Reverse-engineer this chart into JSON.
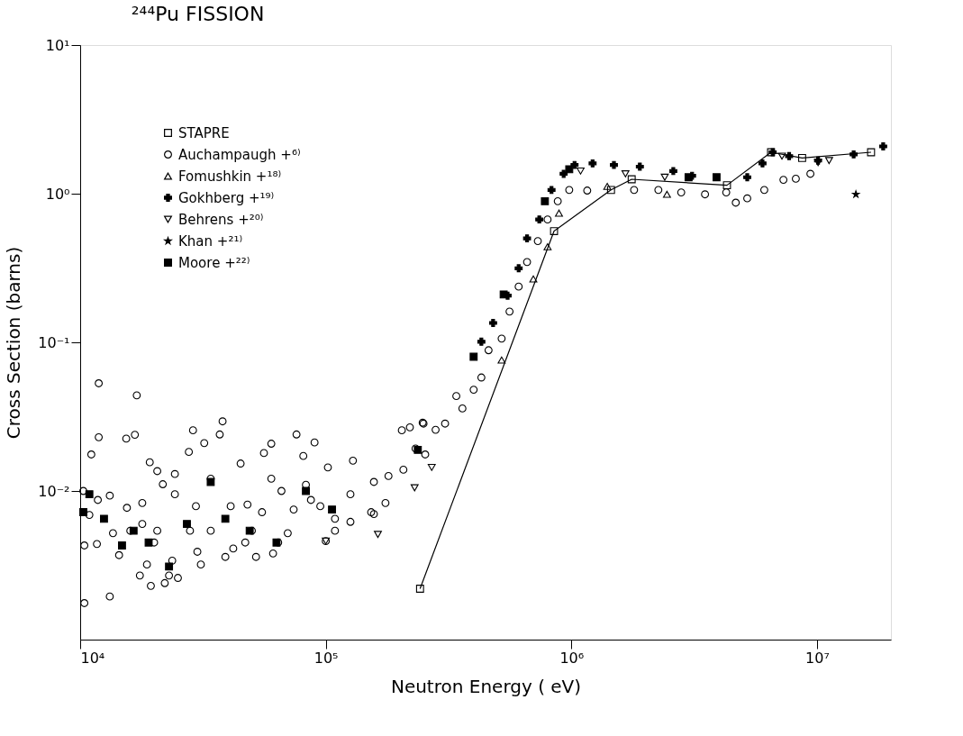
{
  "chart_data": {
    "type": "scatter",
    "title": "²⁴⁴Pu FISSION",
    "xlabel": "Neutron Energy ( eV)",
    "ylabel": "Cross Section (barns)",
    "log": "xy",
    "grid": false,
    "legend": "top left",
    "xlim": [
      10000,
      20000000
    ],
    "xticks": [
      {
        "value": 10000,
        "label": "10⁴"
      },
      {
        "value": 100000,
        "label": "10⁵"
      },
      {
        "value": 1000000,
        "label": "10⁶"
      },
      {
        "value": 10000000,
        "label": "10⁷"
      }
    ],
    "ylim": [
      0.001,
      10
    ],
    "yticks": [
      {
        "value": 0.01,
        "label": "10⁻²"
      },
      {
        "value": 0.1,
        "label": "10⁻¹"
      },
      {
        "value": 1,
        "label": "10⁰"
      },
      {
        "value": 10,
        "label": "10¹"
      }
    ],
    "series": [
      {
        "name": "STAPRE",
        "type": "line",
        "marker": "square",
        "color": "#000000",
        "x": [
          242000,
          850000,
          1450000,
          1760000,
          4300000,
          6500000,
          8700000,
          16600000
        ],
        "values": [
          0.0022,
          0.56,
          1.06,
          1.25,
          1.14,
          1.9,
          1.74,
          1.9
        ]
      },
      {
        "name": "Auchampaugh +⁶⁾",
        "marker": "circle",
        "color": "#000000",
        "x": [
          11900,
          17000,
          11900,
          15400,
          16700,
          28800,
          38000,
          37000,
          32000,
          76000,
          90000,
          60000,
          56000,
          45000,
          81000,
          102000,
          129000,
          204000,
          248000,
          220000,
          11100,
          19200,
          20600,
          24300,
          27700,
          21700,
          60000,
          66000,
          83000,
          10300,
          13200,
          15500,
          17900,
          24300,
          29600,
          34000,
          41000,
          48000,
          55000,
          74000,
          95000,
          109000,
          126000,
          157000,
          175000,
          157000,
          180000,
          232000,
          207000,
          10400,
          10400,
          13200,
          11700,
          13600,
          14400,
          16000,
          17500,
          18700,
          19400,
          20000,
          22100,
          23000,
          25000,
          23700,
          20600,
          30000,
          31000,
          28000,
          39000,
          42000,
          47000,
          52000,
          50000,
          61000,
          64000,
          70000,
          100000,
          109000,
          126000,
          153000,
          10900,
          11800,
          17900,
          34000,
          87000,
          254000,
          250000,
          280000,
          306000,
          340000,
          360000,
          400000,
          430000,
          460000,
          520000,
          560000,
          610000,
          660000,
          730000,
          800000,
          880000,
          980000,
          1160000,
          1800000,
          2260000,
          2800000,
          3500000,
          4270000,
          4670000,
          5200000,
          6100000,
          7300000,
          8200000,
          9400000
        ],
        "values": [
          0.053,
          0.044,
          0.023,
          0.0225,
          0.0239,
          0.0256,
          0.0294,
          0.024,
          0.021,
          0.024,
          0.0212,
          0.0208,
          0.018,
          0.0153,
          0.0172,
          0.0144,
          0.016,
          0.0256,
          0.0288,
          0.0268,
          0.0176,
          0.0156,
          0.0136,
          0.013,
          0.0183,
          0.0111,
          0.0121,
          0.01,
          0.011,
          0.01,
          0.0093,
          0.0077,
          0.0083,
          0.0095,
          0.0079,
          0.0121,
          0.0079,
          0.0081,
          0.0072,
          0.0075,
          0.0079,
          0.0065,
          0.0095,
          0.0115,
          0.0083,
          0.007,
          0.0126,
          0.0193,
          0.0139,
          0.0043,
          0.00176,
          0.00195,
          0.0044,
          0.0052,
          0.0037,
          0.0054,
          0.0027,
          0.0032,
          0.0023,
          0.0045,
          0.0024,
          0.0027,
          0.0026,
          0.0034,
          0.0054,
          0.0039,
          0.0032,
          0.0054,
          0.0036,
          0.0041,
          0.0045,
          0.0036,
          0.0054,
          0.0038,
          0.0045,
          0.0052,
          0.0046,
          0.0054,
          0.0062,
          0.0072,
          0.0069,
          0.0087,
          0.006,
          0.0054,
          0.0087,
          0.0176,
          0.0284,
          0.0258,
          0.0284,
          0.0435,
          0.0359,
          0.048,
          0.058,
          0.0885,
          0.106,
          0.161,
          0.237,
          0.347,
          0.48,
          0.67,
          0.89,
          1.06,
          1.05,
          1.06,
          1.06,
          1.02,
          0.99,
          1.02,
          0.87,
          0.93,
          1.06,
          1.24,
          1.26,
          1.36
        ]
      },
      {
        "name": "Fomushkin +¹⁸⁾",
        "marker": "triangle",
        "color": "#000000",
        "x": [
          520000,
          700000,
          800000,
          890000,
          1400000,
          2450000
        ],
        "values": [
          0.076,
          0.267,
          0.44,
          0.74,
          1.12,
          0.99
        ]
      },
      {
        "name": "Gokhberg +¹⁹⁾",
        "marker": "cross",
        "color": "#000000",
        "x": [
          430000,
          480000,
          550000,
          610000,
          660000,
          740000,
          830000,
          930000,
          1030000,
          1220000,
          1490000,
          1900000,
          2600000,
          3100000,
          3900000,
          4670000,
          5200000,
          6000000,
          6600000,
          7700000,
          10100000,
          12000000,
          14100000,
          18600000
        ],
        "values": [
          0.101,
          0.135,
          0.206,
          0.315,
          0.5,
          0.67,
          1.06,
          1.36,
          1.56,
          1.6,
          1.56,
          1.52,
          1.42,
          1.32,
          null,
          null,
          1.29,
          1.6,
          1.9,
          1.79,
          1.67,
          null,
          1.84,
          2.08
        ]
      },
      {
        "name": "Behrens +²⁰⁾",
        "marker": "triangle-down",
        "color": "#000000",
        "x": [
          100000,
          163000,
          230000,
          270000,
          1090000,
          1660000,
          2400000,
          7200000,
          10100000,
          11200000
        ],
        "values": [
          0.0046,
          0.0051,
          0.0105,
          0.0144,
          1.42,
          1.36,
          1.29,
          1.79,
          1.62,
          1.67
        ]
      },
      {
        "name": "Khan +²¹⁾",
        "marker": "star",
        "color": "#000000",
        "x": [
          14400000
        ],
        "values": [
          0.99
        ]
      },
      {
        "name": "Moore +²²⁾",
        "marker": "square",
        "color": "#000000",
        "x": [
          10300,
          10900,
          12500,
          14800,
          16500,
          19000,
          23000,
          27200,
          34000,
          39000,
          49000,
          63000,
          83000,
          106000,
          237000,
          400000,
          530000,
          780000,
          980000,
          3000000,
          3900000
        ],
        "values": [
          0.0072,
          0.0095,
          0.0065,
          0.0043,
          0.0054,
          0.0045,
          0.0031,
          0.006,
          0.0115,
          0.0065,
          0.0054,
          0.0045,
          0.01,
          0.0075,
          0.0189,
          0.08,
          0.21,
          0.89,
          1.46,
          1.29,
          1.29
        ]
      }
    ]
  }
}
